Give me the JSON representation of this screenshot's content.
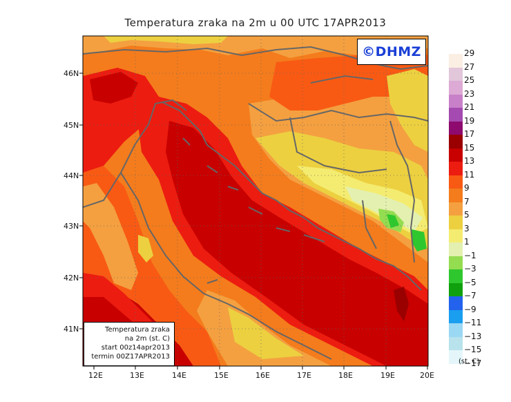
{
  "title": "Temperatura zraka na 2m u 00 UTC 17APR2013",
  "logo": "©DHMZ",
  "lat_labels": [
    "46N",
    "45N",
    "44N",
    "43N",
    "42N",
    "41N"
  ],
  "lon_labels": [
    "12E",
    "13E",
    "14E",
    "15E",
    "16E",
    "17E",
    "18E",
    "19E",
    "20E"
  ],
  "info": {
    "line1": "Temperatura zraka",
    "line2": "na 2m (st. C)",
    "line3": "start 00z14apr2013",
    "line4": "termin 00Z17APR2013"
  },
  "colorbar": {
    "labels": [
      "29",
      "27",
      "25",
      "23",
      "21",
      "19",
      "17",
      "15",
      "13",
      "11",
      "9",
      "7",
      "5",
      "3",
      "1",
      "−1",
      "−3",
      "−5",
      "−7",
      "−9",
      "−11",
      "−13",
      "−15",
      "−17"
    ],
    "colors": [
      "#fbeee2",
      "#e2c6da",
      "#dcaad4",
      "#c880c8",
      "#a44ab0",
      "#8e0a6e",
      "#9a0000",
      "#c80000",
      "#ec1c10",
      "#f85a14",
      "#f47c1c",
      "#f4a040",
      "#ecd040",
      "#f4ec70",
      "#e4f0b0",
      "#94dc50",
      "#2ec82e",
      "#10a00e",
      "#2262ec",
      "#1a9ef0",
      "#9ad8f4",
      "#b8e2ec",
      "#e4f6fa"
    ],
    "unit": "(st. C)"
  }
}
